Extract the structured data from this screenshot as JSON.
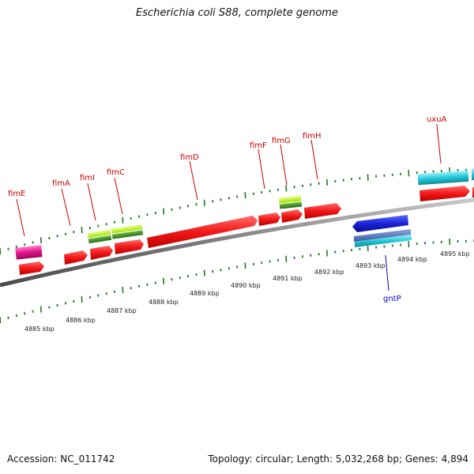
{
  "title": "Escherichia coli S88, complete genome",
  "footer": {
    "accession": "Accession: NC_011742",
    "stats": "Topology: circular; Length: 5,032,268 bp; Genes: 4,894"
  },
  "colors": {
    "backbone": "#8a8a8a",
    "ticks": "#1e7a1e",
    "cds_forward": "#ff1a1a",
    "cds_reverse": "#1a22d8",
    "label_forward": "#cc0000",
    "label_reverse": "#0000cc",
    "feature_pink": "#e0148a",
    "feature_lime": "#a8e000",
    "feature_green": "#3a8a28",
    "feature_cyan": "#22c8d8",
    "feature_steelblue": "#4a74c0"
  },
  "scale_labels": [
    "4885 kbp",
    "4886 kbp",
    "4887 kbp",
    "4888 kbp",
    "4889 kbp",
    "4890 kbp",
    "4891 kbp",
    "4892 kbp",
    "4893 kbp",
    "4894 kbp",
    "4895 kbp"
  ],
  "gene_labels": [
    {
      "name": "fimE",
      "strand": "forward"
    },
    {
      "name": "fimA",
      "strand": "forward"
    },
    {
      "name": "fimI",
      "strand": "forward"
    },
    {
      "name": "fimC",
      "strand": "forward"
    },
    {
      "name": "fimD",
      "strand": "forward"
    },
    {
      "name": "fimF",
      "strand": "forward"
    },
    {
      "name": "fimG",
      "strand": "forward"
    },
    {
      "name": "fimH",
      "strand": "forward"
    },
    {
      "name": "uxuA",
      "strand": "forward"
    },
    {
      "name": "gntP",
      "strand": "reverse"
    }
  ]
}
